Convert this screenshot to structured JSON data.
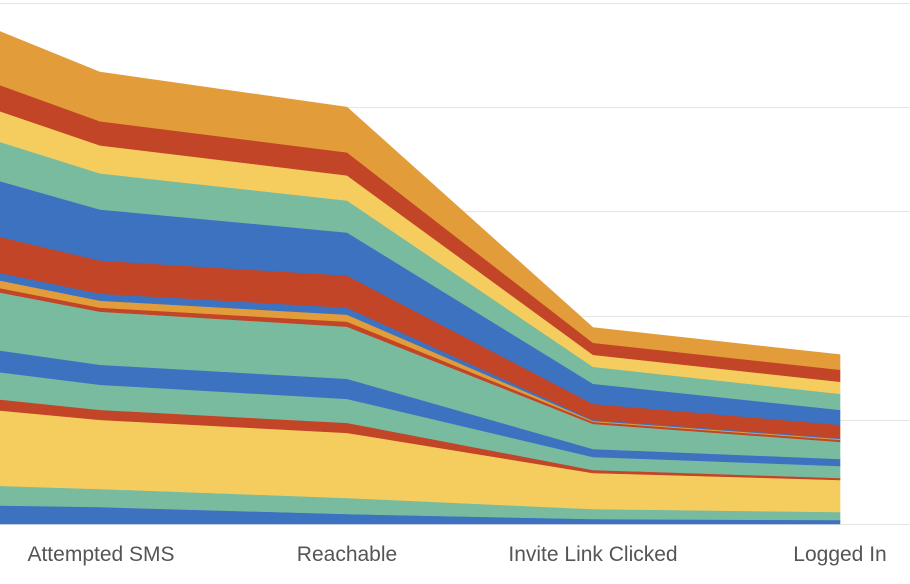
{
  "chart_data": {
    "type": "area",
    "stacked": true,
    "title": "",
    "xlabel": "",
    "ylabel": "",
    "grid": true,
    "legend": "none",
    "categories": [
      "Attempted SMS",
      "Reachable",
      "Invite Link Clicked",
      "Logged In"
    ],
    "series": [
      {
        "color": "#3d72c1",
        "values": [
          17,
          10,
          5,
          4
        ]
      },
      {
        "color": "#79bb9f",
        "values": [
          18,
          16,
          10,
          8
        ]
      },
      {
        "color": "#f5cd5f",
        "values": [
          69,
          65,
          36,
          32
        ]
      },
      {
        "color": "#c24527",
        "values": [
          10,
          10,
          3,
          2
        ]
      },
      {
        "color": "#79bb9f",
        "values": [
          25,
          24,
          13,
          12
        ]
      },
      {
        "color": "#3d72c1",
        "values": [
          20,
          20,
          8,
          7
        ]
      },
      {
        "color": "#79bb9f",
        "values": [
          53,
          52,
          25,
          17
        ]
      },
      {
        "color": "#c24527",
        "values": [
          4,
          5,
          2,
          2
        ]
      },
      {
        "color": "#e29d3a",
        "values": [
          7,
          7,
          1,
          1
        ]
      },
      {
        "color": "#3d72c1",
        "values": [
          7,
          7,
          1,
          1
        ]
      },
      {
        "color": "#c24527",
        "values": [
          33,
          32,
          16,
          13
        ]
      },
      {
        "color": "#3d72c1",
        "values": [
          51,
          43,
          20,
          15
        ]
      },
      {
        "color": "#79bb9f",
        "values": [
          36,
          32,
          17,
          16
        ]
      },
      {
        "color": "#f5cd5f",
        "values": [
          28,
          25,
          12,
          12
        ]
      },
      {
        "color": "#c24527",
        "values": [
          24,
          23,
          12,
          12
        ]
      },
      {
        "color": "#e29d3a",
        "values": [
          49,
          45,
          15,
          15
        ]
      }
    ],
    "ylim": [
      0,
      520
    ],
    "y_gridlines": [
      0,
      104,
      208,
      312,
      416,
      520
    ]
  }
}
